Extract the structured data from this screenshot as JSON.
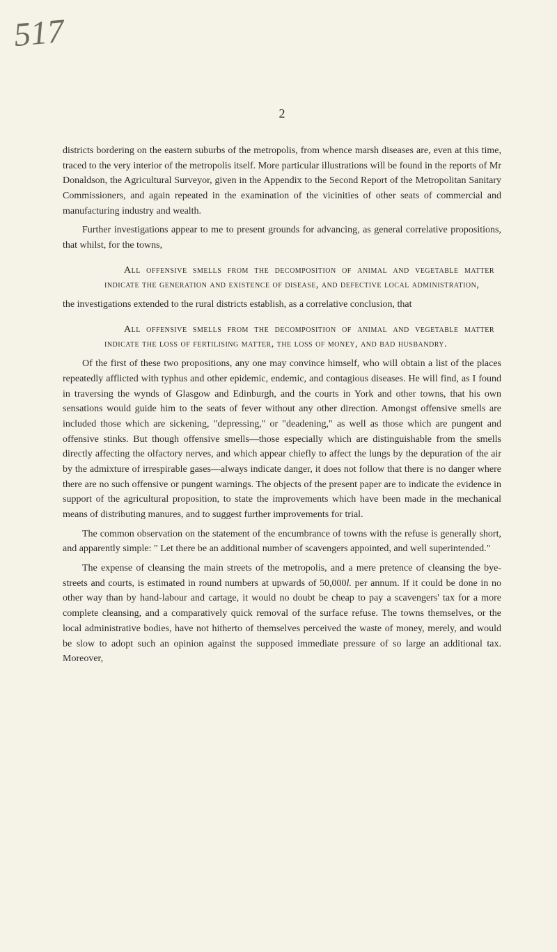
{
  "handwritten_annotation": "517",
  "page_number": "2",
  "paragraphs": {
    "p1": "districts bordering on the eastern suburbs of the metropolis, from whence marsh diseases are, even at this time, traced to the very interior of the metropolis itself. More particular illustrations will be found in the reports of Mr Donaldson, the Agricultural Surveyor, given in the Appendix to the Second Report of the Metropolitan Sanitary Commissioners, and again repeated in the examination of the vicinities of other seats of commercial and manufacturing industry and wealth.",
    "p2": "Further investigations appear to me to present grounds for advancing, as general correlative propositions, that whilst, for the towns,",
    "sc1": "All offensive smells from the decomposition of animal and vegetable matter indicate the generation and existence of disease, and defective local administration,",
    "p3": "the investigations extended to the rural districts establish, as a correlative conclusion, that",
    "sc2": "All offensive smells from the decomposition of animal and vegetable matter indicate the loss of fertilising matter, the loss of money, and bad husbandry.",
    "p4": "Of the first of these two propositions, any one may convince himself, who will obtain a list of the places repeatedly afflicted with typhus and other epidemic, endemic, and contagious diseases. He will find, as I found in traversing the wynds of Glasgow and Edinburgh, and the courts in York and other towns, that his own sensations would guide him to the seats of fever without any other direction. Amongst offensive smells are included those which are sickening, \"depressing,\" or \"deadening,\" as well as those which are pungent and offensive stinks. But though offensive smells—those especially which are distinguishable from the smells directly affecting the olfactory nerves, and which appear chiefly to affect the lungs by the depuration of the air by the admixture of irrespirable gases—always indicate danger, it does not follow that there is no danger where there are no such offensive or pungent warnings. The objects of the present paper are to indicate the evidence in support of the agricultural proposition, to state the improvements which have been made in the mechanical means of distributing manures, and to suggest further improvements for trial.",
    "p5": "The common observation on the statement of the encumbrance of towns with the refuse is generally short, and apparently simple: \" Let there be an additional number of scavengers appointed, and well superintended.\"",
    "p6_part1": "The expense of cleansing the main streets of the metropolis, and a mere pretence of cleansing the bye-streets and courts, is estimated in round numbers at upwards of 50,000",
    "p6_italic": "l.",
    "p6_part2": " per annum. If it could be done in no other way than by hand-labour and cartage, it would no doubt be cheap to pay a scavengers' tax for a more complete cleansing, and a comparatively quick removal of the surface refuse. The towns themselves, or the local administrative bodies, have not hitherto of themselves perceived the waste of money, merely, and would be slow to adopt such an opinion against the supposed immediate pressure of so large an additional tax. Moreover,"
  }
}
